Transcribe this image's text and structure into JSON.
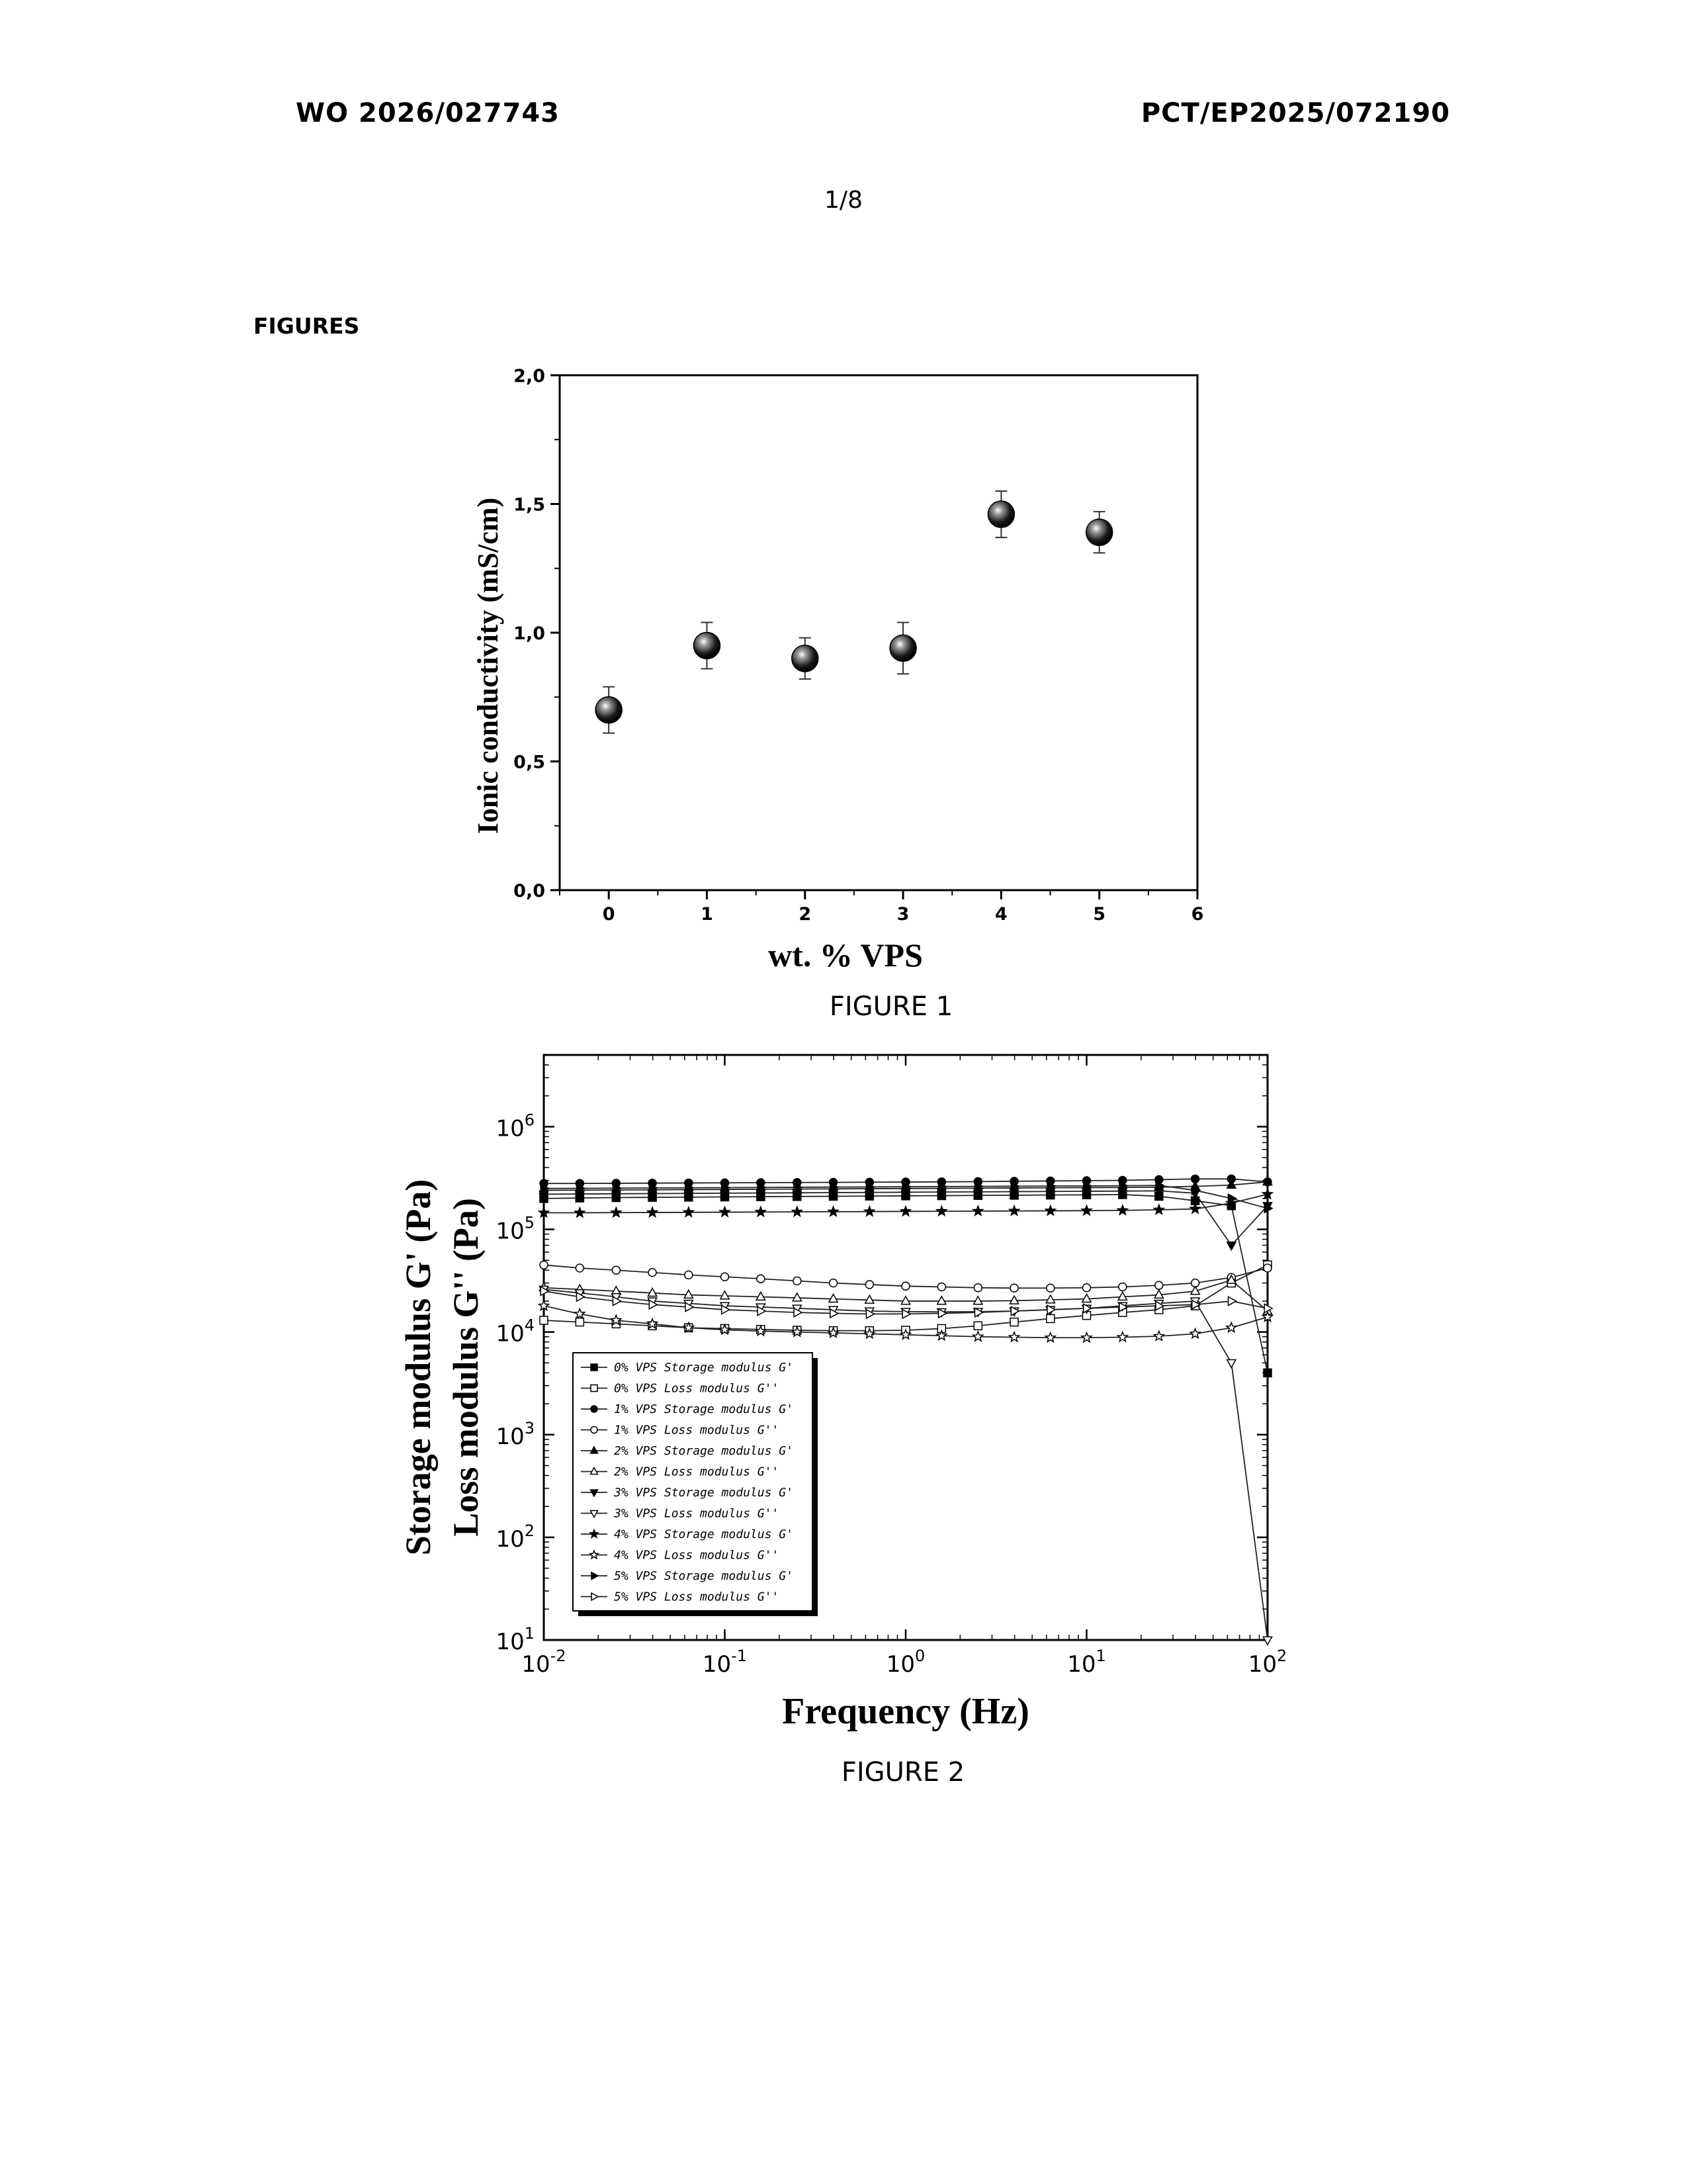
{
  "header": {
    "left": "WO 2026/027743",
    "right": "PCT/EP2025/072190",
    "page": "1/8"
  },
  "section_heading": "FIGURES",
  "captions": {
    "figure1": "FIGURE 1",
    "figure2": "FIGURE 2"
  },
  "chart_data": [
    {
      "type": "scatter",
      "xlabel": "wt. % VPS",
      "ylabel": "Ionic conductivity (mS/cm)",
      "xlim": [
        -0.5,
        6
      ],
      "ylim": [
        0,
        2
      ],
      "x_ticks": [
        0,
        1,
        2,
        3,
        4,
        5,
        6
      ],
      "y_ticks": [
        "0,0",
        "0,5",
        "1,0",
        "1,5",
        "2,0"
      ],
      "grid": false,
      "series": [
        {
          "x": [
            0,
            1,
            2,
            3,
            4,
            5
          ],
          "values": [
            0.7,
            0.95,
            0.9,
            0.94,
            1.46,
            1.39
          ],
          "errors": [
            0.09,
            0.09,
            0.08,
            0.1,
            0.09,
            0.08
          ]
        }
      ]
    },
    {
      "type": "line",
      "xlabel": "Frequency (Hz)",
      "ylabel": [
        "Storage modulus G' (Pa)",
        "Loss modulus G'' (Pa)"
      ],
      "xscale": "log",
      "yscale": "log",
      "xlim": [
        0.01,
        100
      ],
      "ylim": [
        10,
        5000000
      ],
      "x_ticks": [
        0.01,
        0.1,
        1,
        10,
        100
      ],
      "x_tick_labels": [
        [
          "10",
          "-2"
        ],
        [
          "10",
          "-1"
        ],
        [
          "10",
          "0"
        ],
        [
          "10",
          "1"
        ],
        [
          "10",
          "2"
        ]
      ],
      "y_ticks": [
        10,
        100,
        1000,
        10000,
        100000,
        1000000
      ],
      "y_tick_labels": [
        [
          "10",
          "1"
        ],
        [
          "10",
          "2"
        ],
        [
          "10",
          "3"
        ],
        [
          "10",
          "4"
        ],
        [
          "10",
          "5"
        ],
        [
          "10",
          "6"
        ]
      ],
      "legend_position": "lower-left",
      "x": [
        0.01,
        0.0158,
        0.0251,
        0.0398,
        0.0631,
        0.1,
        0.158,
        0.251,
        0.398,
        0.631,
        1.0,
        1.58,
        2.51,
        3.98,
        6.31,
        10,
        15.8,
        25.1,
        39.8,
        63.1,
        100
      ],
      "series": [
        {
          "name": "0% VPS Storage modulus G'",
          "marker": "square-filled",
          "values": [
            200000,
            202000,
            204000,
            205000,
            206000,
            207000,
            208000,
            209000,
            210000,
            211000,
            212000,
            213000,
            214000,
            215000,
            216000,
            217000,
            218000,
            210000,
            190000,
            170000,
            4000
          ]
        },
        {
          "name": "0% VPS Loss modulus G''",
          "marker": "square-open",
          "values": [
            13000,
            12500,
            12000,
            11500,
            11000,
            10800,
            10600,
            10400,
            10300,
            10300,
            10400,
            10800,
            11500,
            12500,
            13500,
            14500,
            15500,
            16500,
            18000,
            30000,
            45000
          ]
        },
        {
          "name": "1% VPS Storage modulus G'",
          "marker": "circle-filled",
          "values": [
            280000,
            280000,
            281000,
            282000,
            283000,
            284000,
            285000,
            286000,
            287000,
            288000,
            289000,
            290000,
            292000,
            294000,
            296000,
            298000,
            300000,
            305000,
            310000,
            310000,
            290000
          ]
        },
        {
          "name": "1% VPS Loss modulus G''",
          "marker": "circle-open",
          "values": [
            45000,
            42000,
            40000,
            38000,
            36000,
            34500,
            33000,
            31500,
            30000,
            29000,
            28000,
            27500,
            27000,
            26800,
            26800,
            27000,
            27500,
            28500,
            30000,
            34000,
            42000
          ]
        },
        {
          "name": "2% VPS Storage modulus G'",
          "marker": "triangle-up-filled",
          "values": [
            240000,
            241000,
            242000,
            243000,
            244000,
            245000,
            246000,
            247000,
            248000,
            249000,
            250000,
            251000,
            252000,
            253000,
            254000,
            255000,
            256000,
            258000,
            262000,
            270000,
            290000
          ]
        },
        {
          "name": "2% VPS Loss modulus G''",
          "marker": "triangle-up-open",
          "values": [
            27000,
            26000,
            25000,
            24000,
            23000,
            22500,
            22000,
            21500,
            21000,
            20500,
            20000,
            20000,
            20000,
            20200,
            20600,
            21000,
            22000,
            23000,
            25000,
            32000,
            16000
          ]
        },
        {
          "name": "3% VPS Storage modulus G'",
          "marker": "triangle-down-filled",
          "values": [
            220000,
            221000,
            222000,
            223000,
            224000,
            225000,
            226000,
            227000,
            228000,
            229000,
            230000,
            231000,
            232000,
            233000,
            234000,
            235000,
            236000,
            237000,
            225000,
            70000,
            170000
          ]
        },
        {
          "name": "3% VPS Loss modulus G''",
          "marker": "triangle-down-open",
          "values": [
            26000,
            24000,
            22000,
            20000,
            19000,
            18000,
            17500,
            17000,
            16500,
            16000,
            15800,
            15700,
            15800,
            16000,
            16500,
            17000,
            18000,
            19000,
            20000,
            5000,
            10
          ]
        },
        {
          "name": "4% VPS Storage modulus G'",
          "marker": "star-filled",
          "values": [
            145000,
            145000,
            145500,
            146000,
            146500,
            147000,
            147500,
            148000,
            148500,
            149000,
            149500,
            150000,
            150500,
            151000,
            151500,
            152000,
            153000,
            155000,
            158000,
            180000,
            220000
          ]
        },
        {
          "name": "4% VPS Loss modulus G''",
          "marker": "star-open",
          "values": [
            18000,
            15000,
            13000,
            12000,
            11000,
            10500,
            10200,
            10000,
            9800,
            9600,
            9400,
            9200,
            9000,
            8900,
            8800,
            8800,
            8900,
            9100,
            9600,
            11000,
            14000
          ]
        },
        {
          "name": "5% VPS Storage modulus G'",
          "marker": "triangle-right-filled",
          "values": [
            250000,
            251000,
            252000,
            253000,
            254000,
            255000,
            256000,
            257000,
            258000,
            259000,
            260000,
            261000,
            262000,
            263000,
            264000,
            265000,
            266000,
            268000,
            240000,
            200000,
            160000
          ]
        },
        {
          "name": "5% VPS Loss modulus G''",
          "marker": "triangle-right-open",
          "values": [
            25000,
            22000,
            20000,
            18500,
            17500,
            16500,
            16000,
            15500,
            15200,
            15000,
            15000,
            15200,
            15500,
            16000,
            16500,
            17000,
            17500,
            18000,
            18500,
            20000,
            17000
          ]
        }
      ]
    }
  ]
}
